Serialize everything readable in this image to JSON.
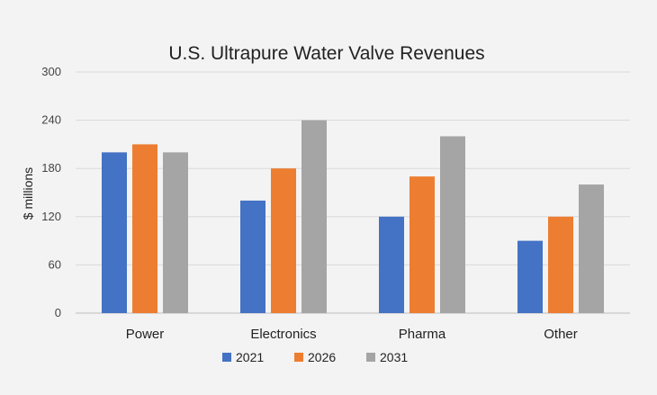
{
  "chart_data": {
    "type": "bar",
    "title": "U.S. Ultrapure Water Valve Revenues",
    "xlabel": "",
    "ylabel": "$ millions",
    "ylim": [
      0,
      300
    ],
    "yticks": [
      0,
      60,
      120,
      180,
      240,
      300
    ],
    "grid": true,
    "legend_position": "bottom",
    "categories": [
      "Power",
      "Electronics",
      "Pharma",
      "Other"
    ],
    "series": [
      {
        "name": "2021",
        "color": "#4472c4",
        "values": [
          200,
          140,
          120,
          90
        ]
      },
      {
        "name": "2026",
        "color": "#ed7d31",
        "values": [
          210,
          180,
          170,
          120
        ]
      },
      {
        "name": "2031",
        "color": "#a5a5a5",
        "values": [
          200,
          240,
          220,
          160
        ]
      }
    ]
  }
}
